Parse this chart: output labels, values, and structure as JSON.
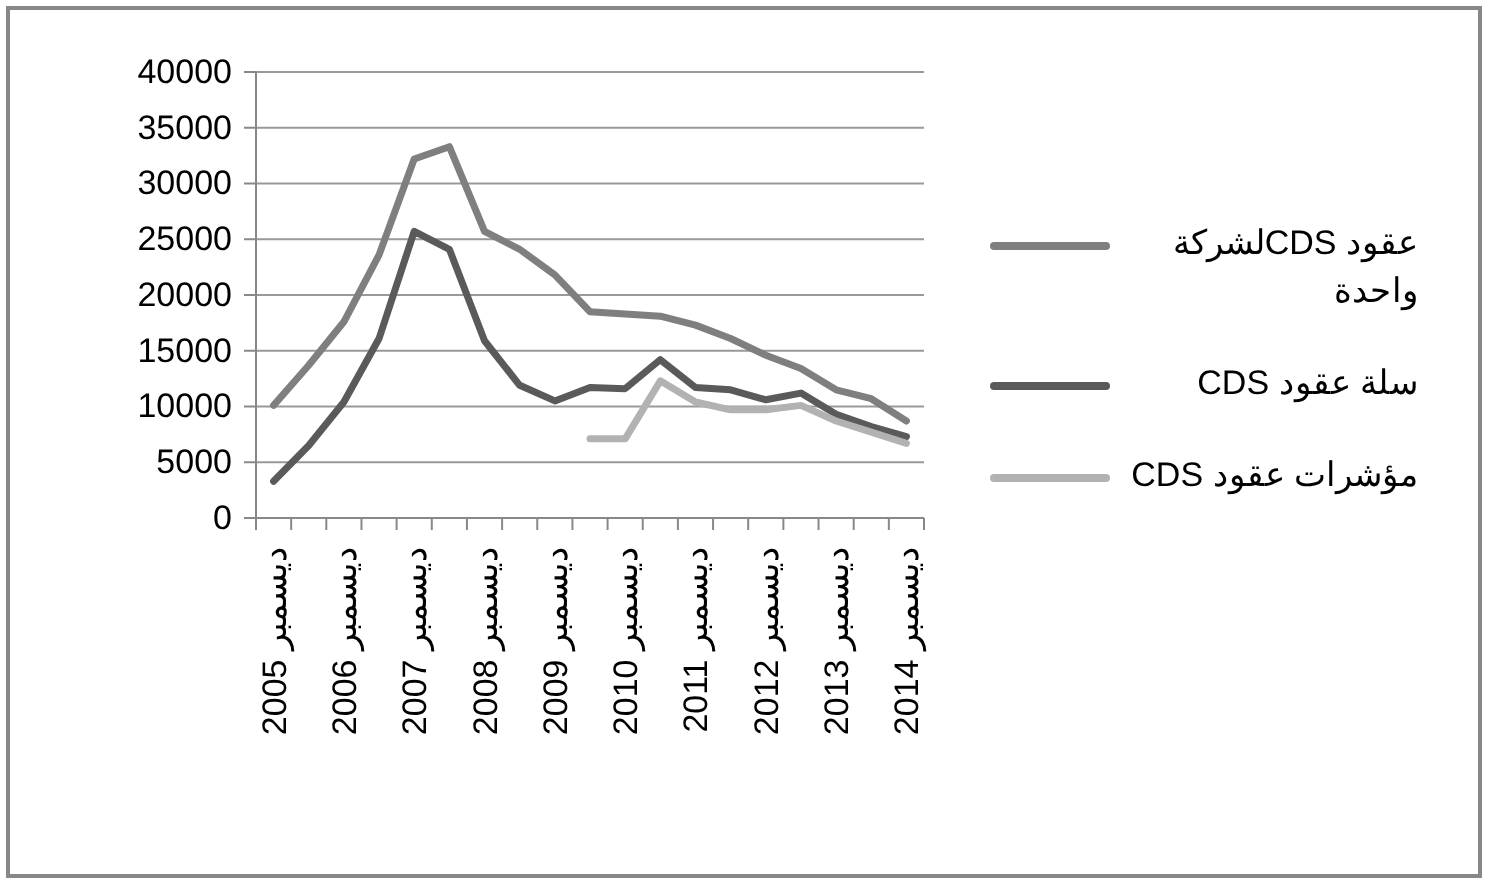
{
  "chart_data": {
    "type": "line",
    "categories": [
      "ديسمبر 2005",
      null,
      "ديسمبر 2006",
      null,
      "ديسمبر 2007",
      null,
      "ديسمبر 2008",
      null,
      "ديسمبر 2009",
      null,
      "ديسمبر 2010",
      null,
      "ديسمبر 2011",
      null,
      "ديسمبر 2012",
      null,
      "ديسمبر 2013",
      null,
      "ديسمبر 2014"
    ],
    "series": [
      {
        "name": "عقود CDSلشركة واحدة",
        "color": "#7f7f7f",
        "values": [
          10100,
          13700,
          17600,
          23600,
          32200,
          33300,
          25700,
          24100,
          21800,
          18500,
          18300,
          18100,
          17300,
          16100,
          14600,
          13400,
          11500,
          10700,
          8700
        ]
      },
      {
        "name": "سلة عقود CDS",
        "color": "#5a5a5a",
        "values": [
          3300,
          6500,
          10400,
          16100,
          25700,
          24100,
          15900,
          11900,
          10500,
          11700,
          11600,
          14200,
          11700,
          11500,
          10600,
          11200,
          9300,
          8200,
          7300
        ]
      },
      {
        "name": "مؤشرات عقود CDS",
        "color": "#b2b2b2",
        "values": [
          null,
          null,
          null,
          null,
          null,
          null,
          null,
          null,
          null,
          7100,
          7100,
          12300,
          10400,
          9700,
          9700,
          10100,
          8700,
          7700,
          6700
        ]
      }
    ],
    "ylim": [
      0,
      40000
    ],
    "yticks": [
      0,
      5000,
      10000,
      15000,
      20000,
      25000,
      30000,
      35000,
      40000
    ],
    "grid": "y",
    "legend": "right",
    "marker": "none",
    "line_style": "solid"
  }
}
